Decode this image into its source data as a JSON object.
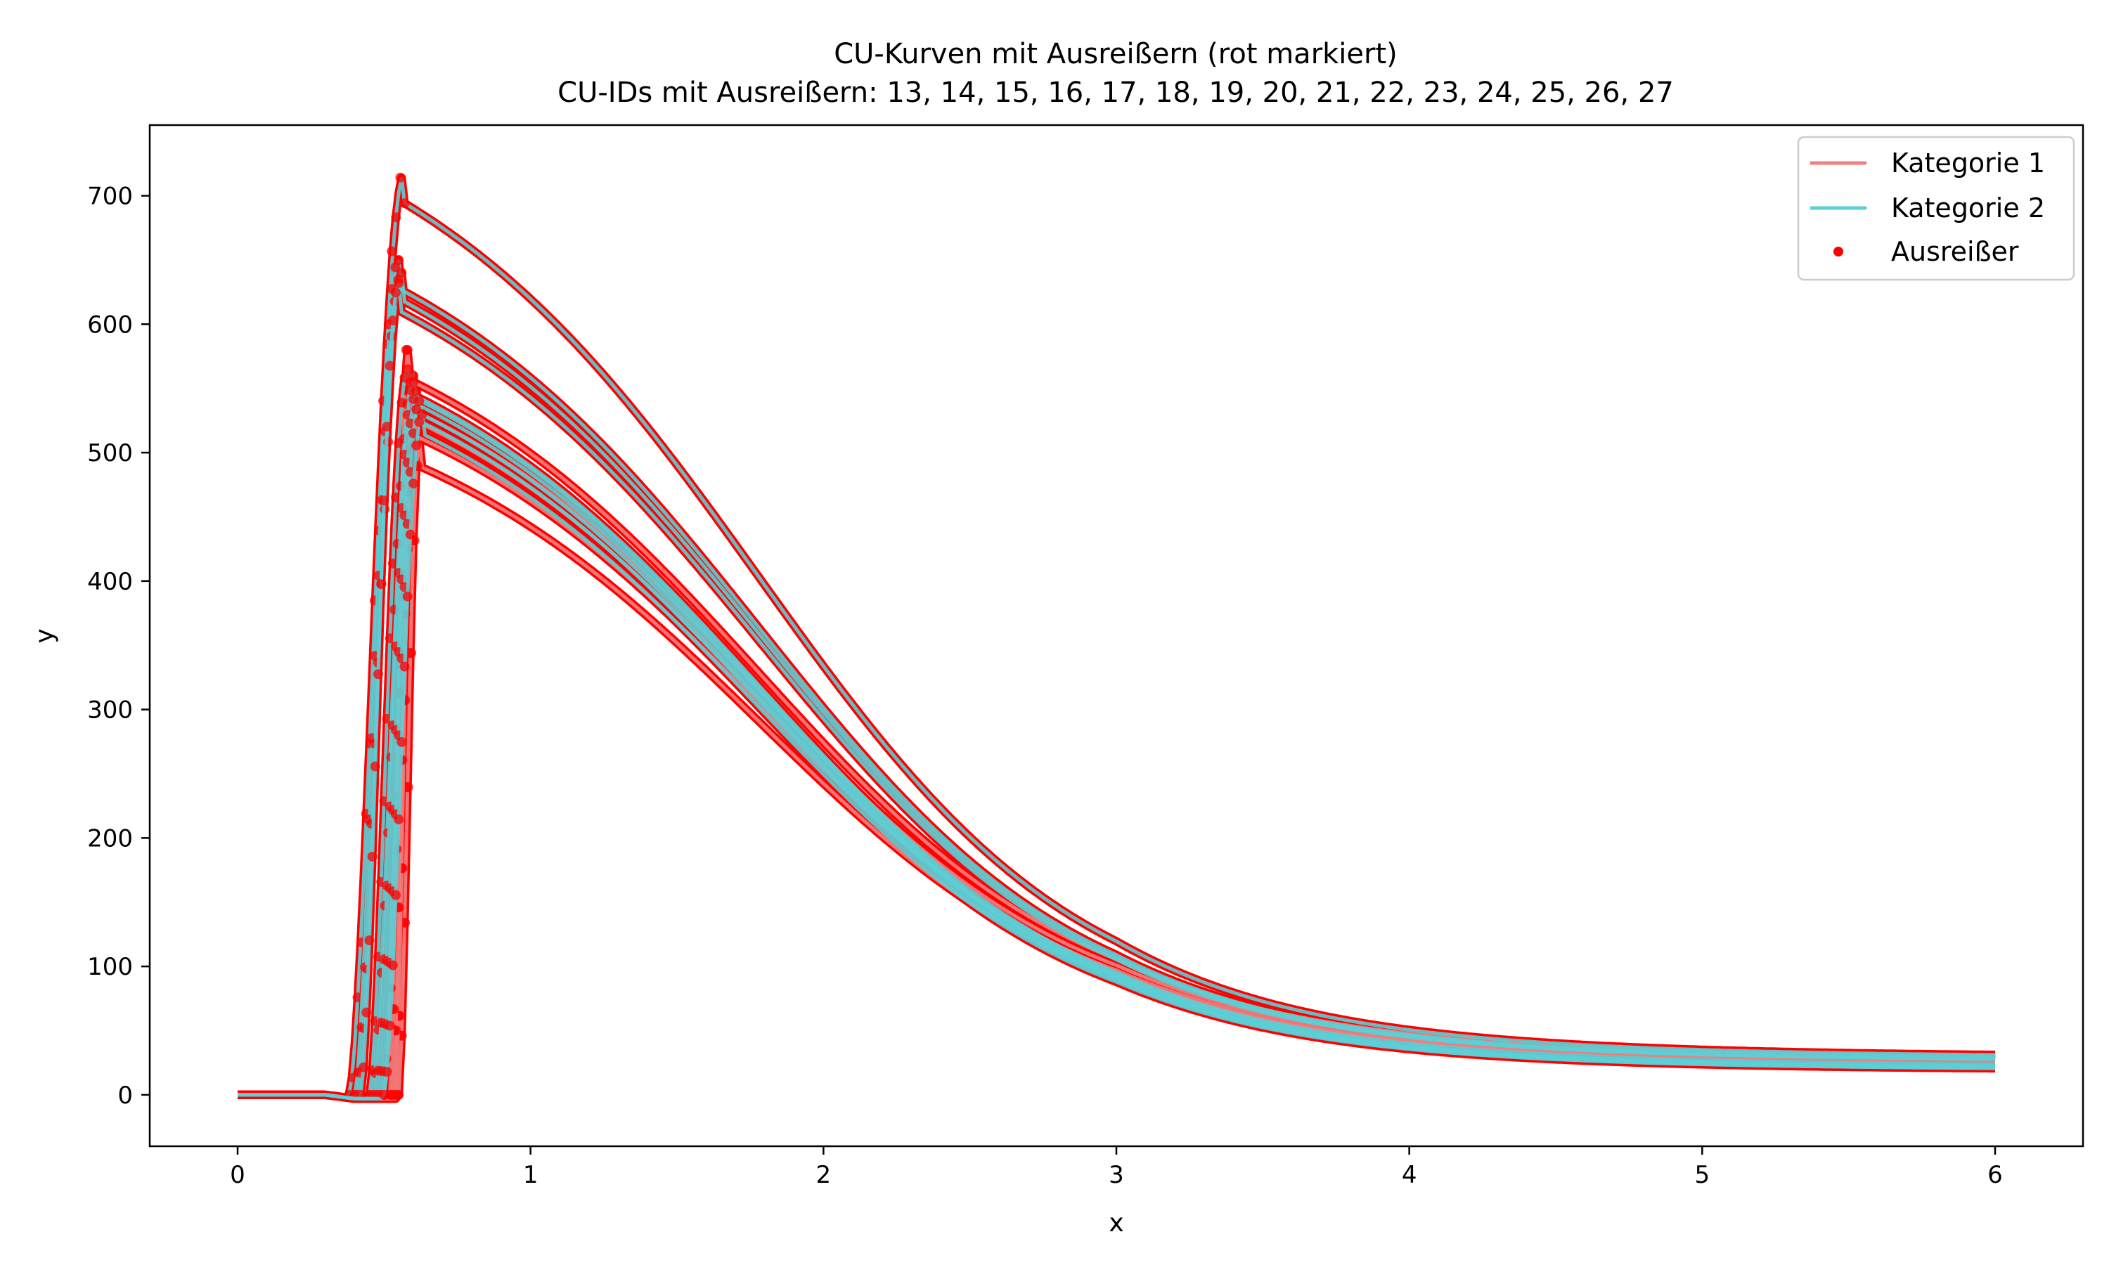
{
  "chart_data": {
    "type": "line",
    "title": "CU-Kurven mit Ausreißern (rot markiert)",
    "subtitle": "CU-IDs mit Ausreißern: 13, 14, 15, 16, 17, 18, 19, 20, 21, 22, 23, 24, 25, 26, 27",
    "xlabel": "x",
    "ylabel": "y",
    "xlim": [
      -0.3,
      6.3
    ],
    "ylim": [
      -40,
      755
    ],
    "x_ticks": [
      "0",
      "1",
      "2",
      "3",
      "4",
      "5",
      "6"
    ],
    "y_ticks": [
      "0",
      "100",
      "200",
      "300",
      "400",
      "500",
      "600",
      "700"
    ],
    "grid": false,
    "legend": {
      "placement": "top-right",
      "entries": [
        {
          "label": "Kategorie 1",
          "kind": "line",
          "color": "#f08080"
        },
        {
          "label": "Kategorie 2",
          "kind": "line",
          "color": "#5bcfd6"
        },
        {
          "label": "Ausreißer",
          "kind": "marker",
          "color": "#ff0000"
        }
      ]
    },
    "colors": {
      "kategorie_1": "#f08080",
      "kategorie_2": "#5bcfd6",
      "ausreisser": "#ff0000"
    },
    "curve_model": "Each curve: y≈offset before onset, steep rise to peak, then exponential-like decay to tail value at x=6",
    "series": [
      {
        "category": 1,
        "onset": 0.55,
        "peak_x": 0.62,
        "peak_y": 510,
        "y_at_3": 62,
        "end_y": 25
      },
      {
        "category": 1,
        "onset": 0.54,
        "peak_x": 0.6,
        "peak_y": 535,
        "y_at_3": 65,
        "end_y": 26
      },
      {
        "category": 1,
        "onset": 0.53,
        "peak_x": 0.6,
        "peak_y": 555,
        "y_at_3": 68,
        "end_y": 27
      },
      {
        "category": 1,
        "onset": 0.52,
        "peak_x": 0.58,
        "peak_y": 580,
        "y_at_3": 72,
        "end_y": 28
      },
      {
        "category": 1,
        "onset": 0.5,
        "peak_x": 0.6,
        "peak_y": 545,
        "y_at_3": 60,
        "end_y": 24
      },
      {
        "category": 2,
        "onset": 0.38,
        "peak_x": 0.57,
        "peak_y": 718,
        "y_at_3": 70,
        "end_y": 29
      },
      {
        "category": 2,
        "onset": 0.4,
        "peak_x": 0.55,
        "peak_y": 650,
        "y_at_3": 65,
        "end_y": 27
      },
      {
        "category": 2,
        "onset": 0.41,
        "peak_x": 0.56,
        "peak_y": 640,
        "y_at_3": 64,
        "end_y": 26
      },
      {
        "category": 2,
        "onset": 0.42,
        "peak_x": 0.55,
        "peak_y": 632,
        "y_at_3": 62,
        "end_y": 26
      },
      {
        "category": 2,
        "onset": 0.45,
        "peak_x": 0.58,
        "peak_y": 565,
        "y_at_3": 58,
        "end_y": 22
      },
      {
        "category": 2,
        "onset": 0.46,
        "peak_x": 0.6,
        "peak_y": 560,
        "y_at_3": 55,
        "end_y": 21
      },
      {
        "category": 2,
        "onset": 0.47,
        "peak_x": 0.6,
        "peak_y": 555,
        "y_at_3": 54,
        "end_y": 20
      },
      {
        "category": 2,
        "onset": 0.48,
        "peak_x": 0.61,
        "peak_y": 548,
        "y_at_3": 53,
        "end_y": 20
      },
      {
        "category": 2,
        "onset": 0.49,
        "peak_x": 0.62,
        "peak_y": 540,
        "y_at_3": 52,
        "end_y": 19
      },
      {
        "category": 2,
        "onset": 0.5,
        "peak_x": 0.63,
        "peak_y": 530,
        "y_at_3": 51,
        "end_y": 19
      }
    ],
    "outliers": {
      "description": "Red dots along all curves (dense), marking outlier points of CU-IDs 13–27",
      "ids": [
        13,
        14,
        15,
        16,
        17,
        18,
        19,
        20,
        21,
        22,
        23,
        24,
        25,
        26,
        27
      ]
    }
  }
}
